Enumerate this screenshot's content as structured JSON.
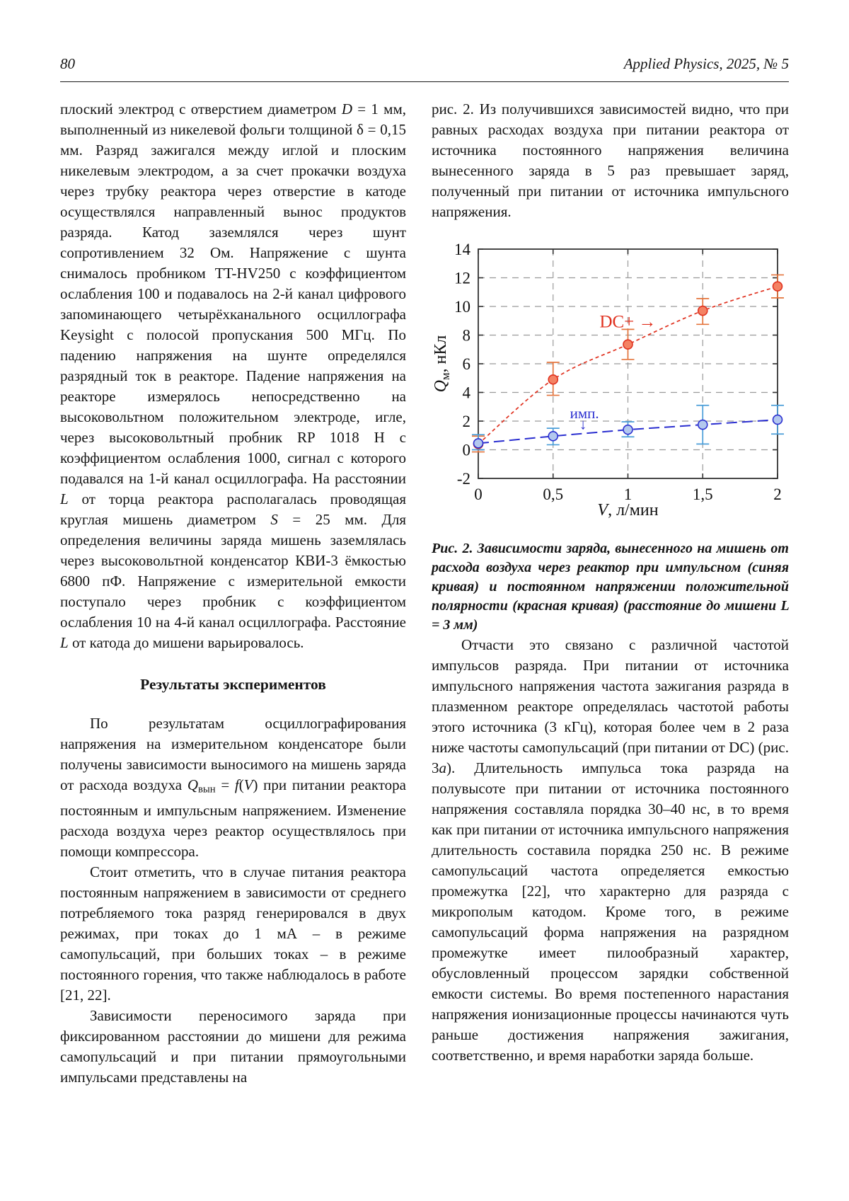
{
  "header": {
    "page_number": "80",
    "journal_title": "Applied Physics, 2025, № 5"
  },
  "left_column": {
    "p1": [
      {
        "t": "плоский электрод с отверстием диаметром "
      },
      {
        "t": "D",
        "i": true
      },
      {
        "t": " = 1 мм, выполненный из никелевой фольги толщиной δ = 0,15 мм. Разряд зажигался между иглой и плоским никелевым электродом, а за счет прокачки воздуха через трубку реактора через отверстие в катоде осуществлялся направленный вынос продуктов разряда. Катод заземлялся через шунт сопротивлением 32 Ом. Напряжение с шунта снималось пробником TT-HV250 с коэффициентом ослабления 100 и подавалось на 2-й канал цифрового запоминающего четырёхканального осциллографа Keysight с полосой пропускания 500 МГц. По падению напряжения на шунте определялся разрядный ток в реакторе. Падение напряжения на реакторе измерялось непосредственно на высоковольтном положительном электроде, игле, через высоковольтный пробник RP 1018 H с коэффициентом ослабления 1000, сигнал с которого подавался на 1-й канал осциллографа. На расстоянии "
      },
      {
        "t": "L",
        "i": true
      },
      {
        "t": " от торца реактора располагалась проводящая круглая мишень диаметром "
      },
      {
        "t": "S",
        "i": true
      },
      {
        "t": " = 25 мм. Для определения величины заряда мишень заземлялась через высоковольтной конденсатор КВИ-3 ёмкостью 6800 пФ. Напряжение с измерительной емкости поступало через пробник с коэффициентом ослабления 10 на 4-й канал осциллографа. Расстояние "
      },
      {
        "t": "L",
        "i": true
      },
      {
        "t": " от катода до мишени варьировалось."
      }
    ],
    "heading": "Результаты экспериментов",
    "p2": [
      {
        "t": "По результатам осциллографирования напряжения на измерительном конденсаторе были получены зависимости выносимого на мишень заряда от расхода воздуха "
      },
      {
        "t": "Q",
        "i": true
      },
      {
        "t": "вын",
        "sub": true
      },
      {
        "t": " = "
      },
      {
        "t": "f",
        "i": true
      },
      {
        "t": "("
      },
      {
        "t": "V",
        "i": true
      },
      {
        "t": ") при питании реактора постоянным и импульсным напряжением. Изменение расхода воздуха через реактор осуществлялось при помощи компрессора."
      }
    ],
    "p3": [
      {
        "t": "Стоит отметить, что в случае питания реактора постоянным напряжением в зависимости от среднего потребляемого тока разряд генерировался в двух режимах, при токах до 1 мА – в режиме самопульсаций, при больших токах – в режиме постоянного горения, что также наблюдалось в работе [21, 22]."
      }
    ],
    "p4": [
      {
        "t": "Зависимости переносимого заряда при фиксированном расстоянии до мишени для режима самопульсаций и при питании прямоугольными импульсами представлены на"
      }
    ]
  },
  "right_column": {
    "p1": [
      {
        "t": "рис. 2. Из получившихся зависимостей видно, что при равных расходах воздуха при питании реактора от источника постоянного напряжения величина вынесенного заряда в 5 раз превышает заряд, полученный при питании от источника импульсного напряжения."
      }
    ],
    "caption": [
      {
        "t": "Рис. 2. Зависимости заряда, вынесенного на мишень от расхода воздуха через реактор при импульсном (синяя кривая) и постоянном напряжении положительной полярности (красная кривая) (расстояние до мишени ",
        "b": true,
        "i": true
      },
      {
        "t": "L",
        "b": true,
        "i": true
      },
      {
        "t": " = 3 мм)",
        "b": true,
        "i": true
      }
    ],
    "p2": [
      {
        "t": "Отчасти это связано с различной частотой импульсов разряда. При питании от источника импульсного напряжения частота зажигания разряда в плазменном реакторе определялась частотой работы этого источника (3 кГц), которая более чем в 2 раза ниже частоты самопульсаций (при питании от DC) (рис. 3"
      },
      {
        "t": "а",
        "i": true
      },
      {
        "t": "). Длительность импульса тока разряда на полувысоте при питании от источника постоянного напряжения составляла порядка 30–40 нс, в то время как при питании от источника импульсного напряжения длительность составила порядка 250 нс. В режиме самопульсаций частота определяется емкостью промежутка [22], что характерно для разряда с микрополым катодом. Кроме того, в режиме самопульсаций форма напряжения на разрядном промежутке имеет пилообразный характер, обусловленный процессом зарядки собственной емкости системы. Во время постепенного нарастания напряжения ионизационные процессы начинаются чуть раньше достижения напряжения зажигания, соответственно, и время наработки заряда больше."
      }
    ]
  },
  "chart_data": {
    "type": "line",
    "title": "",
    "xlabel": "V, л/мин",
    "ylabel": "Qм, нКл",
    "xlabel_segments": [
      {
        "t": "V",
        "i": true
      },
      {
        "t": ", л/мин"
      }
    ],
    "ylabel_segments": [
      {
        "t": "Q",
        "i": true
      },
      {
        "t": "м",
        "sub": true
      },
      {
        "t": ", нКл"
      }
    ],
    "xlim": [
      0,
      2
    ],
    "ylim": [
      -2,
      14
    ],
    "x_ticks": [
      0,
      0.5,
      1,
      1.5,
      2
    ],
    "x_tick_labels": [
      "0",
      "0,5",
      "1",
      "1,5",
      "2"
    ],
    "x_gridlines": [
      0.5,
      1,
      1.5
    ],
    "y_ticks": [
      -2,
      0,
      2,
      4,
      6,
      8,
      10,
      12,
      14
    ],
    "y_tick_labels": [
      "-2",
      "0",
      "2",
      "4",
      "6",
      "8",
      "10",
      "12",
      "14"
    ],
    "grid": true,
    "grid_color": "#9a9a9a",
    "frame_color": "#333333",
    "x": [
      0,
      0.5,
      1,
      1.5,
      2
    ],
    "series": [
      {
        "name": "DC+ (постоянное напряжение, красная кривая)",
        "color": "#e0311f",
        "marker_fill": "#f48263",
        "err_color": "#e4743c",
        "line": "smooth",
        "dash": "5 4",
        "width": 1.7,
        "values": [
          0.4,
          4.9,
          7.35,
          9.7,
          11.4
        ],
        "err_low": [
          -0.15,
          3.8,
          6.3,
          8.75,
          10.6
        ],
        "err_high": [
          0.95,
          6.1,
          8.4,
          10.55,
          12.2
        ]
      },
      {
        "name": "имп. (импульсное напряжение, синяя кривая)",
        "color": "#2b2fd0",
        "marker_fill": "#b3c8ee",
        "err_color": "#4b9ed8",
        "line": "straight",
        "dash": "15 7",
        "width": 2,
        "values": [
          0.45,
          0.95,
          1.4,
          1.75,
          2.1
        ],
        "err_low": [
          0.0,
          0.35,
          0.9,
          0.4,
          1.1
        ],
        "err_high": [
          1.05,
          1.5,
          1.95,
          3.1,
          3.1
        ]
      }
    ],
    "annotations": [
      {
        "text": "DC+ →",
        "x": 1.0,
        "y": 8.9,
        "color": "#e0311f",
        "size": 25
      },
      {
        "text": "имп.",
        "x": 0.71,
        "y": 2.55,
        "color": "#2b2fd0",
        "size": 21
      },
      {
        "text": "↓",
        "x": 0.7,
        "y": 1.78,
        "color": "#2b2fd0",
        "size": 21
      }
    ]
  }
}
